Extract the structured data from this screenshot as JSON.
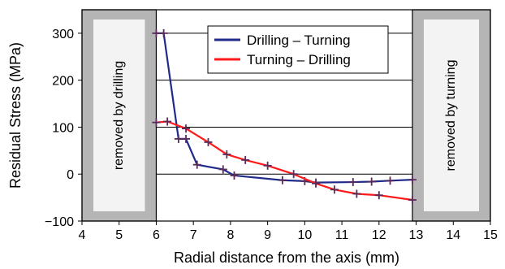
{
  "chart_data": {
    "type": "line",
    "title": "",
    "xlabel": "Radial distance from the axis (mm)",
    "ylabel": "Residual Stress (MPa)",
    "xlim": [
      4,
      15
    ],
    "ylim": [
      -100,
      350
    ],
    "xticks": [
      4,
      5,
      6,
      7,
      8,
      9,
      10,
      11,
      12,
      13,
      14,
      15
    ],
    "yticks": [
      -100,
      0,
      100,
      200,
      300
    ],
    "grid": "horizontal",
    "legend_position": "top-center",
    "shaded_regions": [
      {
        "x_range": [
          4,
          6
        ],
        "label": "removed by drilling"
      },
      {
        "x_range": [
          12.9,
          15
        ],
        "label": "removed by turning"
      }
    ],
    "series": [
      {
        "name": "Drilling – Turning",
        "color": "#1f2a8a",
        "marker_color": "#5a2a5a",
        "x": [
          6.0,
          6.2,
          6.6,
          6.8,
          7.1,
          7.8,
          8.1,
          9.4,
          10.0,
          10.3,
          11.3,
          11.8,
          12.3,
          12.9
        ],
        "y": [
          300,
          300,
          75,
          75,
          20,
          10,
          -3,
          -13,
          -15,
          -18,
          -17,
          -16,
          -14,
          -12
        ]
      },
      {
        "name": "Turning – Drilling",
        "color": "#ff1a1a",
        "marker_color": "#5a2a5a",
        "x": [
          6.0,
          6.3,
          6.8,
          7.4,
          7.9,
          8.4,
          9.0,
          9.7,
          10.3,
          10.8,
          11.4,
          12.0,
          12.9
        ],
        "y": [
          110,
          112,
          97,
          68,
          42,
          30,
          18,
          0,
          -20,
          -33,
          -42,
          -45,
          -55
        ]
      }
    ]
  }
}
